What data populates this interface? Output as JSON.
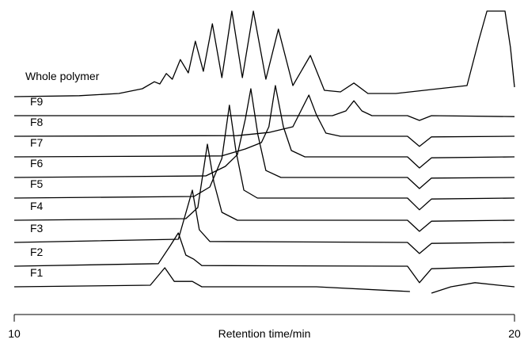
{
  "chart_data": {
    "type": "line",
    "xlabel": "Retention time/min",
    "xlim": [
      10,
      20
    ],
    "xticks": [
      10,
      20
    ],
    "ylim": [
      0,
      100
    ],
    "color": "#000000",
    "series": [
      {
        "name": "Whole polymer",
        "x": [
          10.0,
          11.3,
          12.09,
          12.56,
          12.8,
          12.91,
          13.04,
          13.16,
          13.32,
          13.48,
          13.62,
          13.78,
          13.96,
          14.15,
          14.35,
          14.56,
          14.78,
          15.03,
          15.28,
          15.57,
          15.92,
          16.2,
          16.52,
          16.79,
          17.07,
          17.63,
          19.05,
          19.29,
          19.45,
          19.81,
          19.92,
          20.0
        ],
        "values": [
          69.5,
          69.8,
          70.5,
          72,
          74.2,
          73.5,
          76.8,
          75,
          81.2,
          77,
          87,
          77.5,
          92.5,
          75.5,
          96.5,
          75.5,
          96.5,
          75,
          90.8,
          73,
          82.5,
          71.5,
          71,
          73.8,
          70.5,
          70.5,
          73,
          87.5,
          96.5,
          96.5,
          85,
          72.5
        ]
      },
      {
        "name": "F9",
        "x": [
          10.0,
          16.36,
          16.63,
          16.79,
          16.95,
          17.15,
          17.86,
          18.1,
          18.34,
          20.0
        ],
        "values": [
          63.5,
          63.5,
          65,
          68.2,
          65,
          63.5,
          63.5,
          62,
          63.5,
          63.2
        ]
      },
      {
        "name": "F8",
        "x": [
          10.0,
          14.46,
          15.09,
          15.57,
          15.73,
          15.89,
          16.04,
          16.23,
          16.52,
          17.86,
          18.1,
          18.34,
          20.0
        ],
        "values": [
          57,
          57.2,
          58.2,
          60,
          65,
          70,
          63.8,
          58,
          57,
          57,
          53.8,
          56.8,
          57
        ]
      },
      {
        "name": "F7",
        "x": [
          10.0,
          14.15,
          14.62,
          14.94,
          15.09,
          15.22,
          15.38,
          15.54,
          15.81,
          17.86,
          18.1,
          18.34,
          20.0
        ],
        "values": [
          50.5,
          50.8,
          53,
          55,
          60,
          73,
          60,
          52.5,
          50.5,
          50.5,
          47,
          50.2,
          50.5
        ]
      },
      {
        "name": "F6",
        "x": [
          10.0,
          13.83,
          14.22,
          14.46,
          14.62,
          14.73,
          14.87,
          15.03,
          15.33,
          17.86,
          18.1,
          18.34,
          20.0
        ],
        "values": [
          44,
          44.5,
          47.5,
          51.2,
          62.5,
          72,
          57.5,
          46.2,
          44,
          44,
          40.5,
          43.8,
          44
        ]
      },
      {
        "name": "F5",
        "x": [
          10.0,
          13.59,
          13.91,
          14.15,
          14.3,
          14.43,
          14.59,
          14.86,
          17.86,
          18.1,
          18.34,
          20.0
        ],
        "values": [
          37.5,
          38,
          41,
          50,
          66.8,
          52.5,
          40,
          37.5,
          37.5,
          33.8,
          37.2,
          37.5
        ]
      },
      {
        "name": "F4",
        "x": [
          10.0,
          13.43,
          13.67,
          13.86,
          13.99,
          14.15,
          14.46,
          17.86,
          18.1,
          18.34,
          20.0
        ],
        "values": [
          30.5,
          31,
          34.5,
          54.5,
          42.5,
          33,
          30.5,
          30.5,
          27,
          30.2,
          30.5
        ]
      },
      {
        "name": "F3",
        "x": [
          10.0,
          13.28,
          13.56,
          13.7,
          13.91,
          17.86,
          18.1,
          18.34,
          20.0
        ],
        "values": [
          23.5,
          24.5,
          40,
          27.5,
          23.8,
          23.5,
          20,
          23.2,
          23.5
        ]
      },
      {
        "name": "F2",
        "x": [
          10.0,
          12.88,
          13.12,
          13.28,
          13.43,
          13.59,
          13.75,
          17.86,
          18.1,
          18.34,
          20.0
        ],
        "values": [
          16,
          16.8,
          22.5,
          26.5,
          19.5,
          18.2,
          16.2,
          16,
          10.8,
          15.2,
          16
        ]
      },
      {
        "name": "F1",
        "x": [
          10.0,
          12.72,
          13.01,
          13.2,
          13.56,
          13.75,
          16.04,
          17.91,
          18.1,
          18.34,
          18.73,
          19.21,
          19.68,
          20.0
        ],
        "values": [
          9.5,
          10,
          15.5,
          11.2,
          11.2,
          9.5,
          9.5,
          8,
          null,
          7.5,
          9.5,
          10.8,
          10,
          9.5
        ]
      }
    ]
  }
}
